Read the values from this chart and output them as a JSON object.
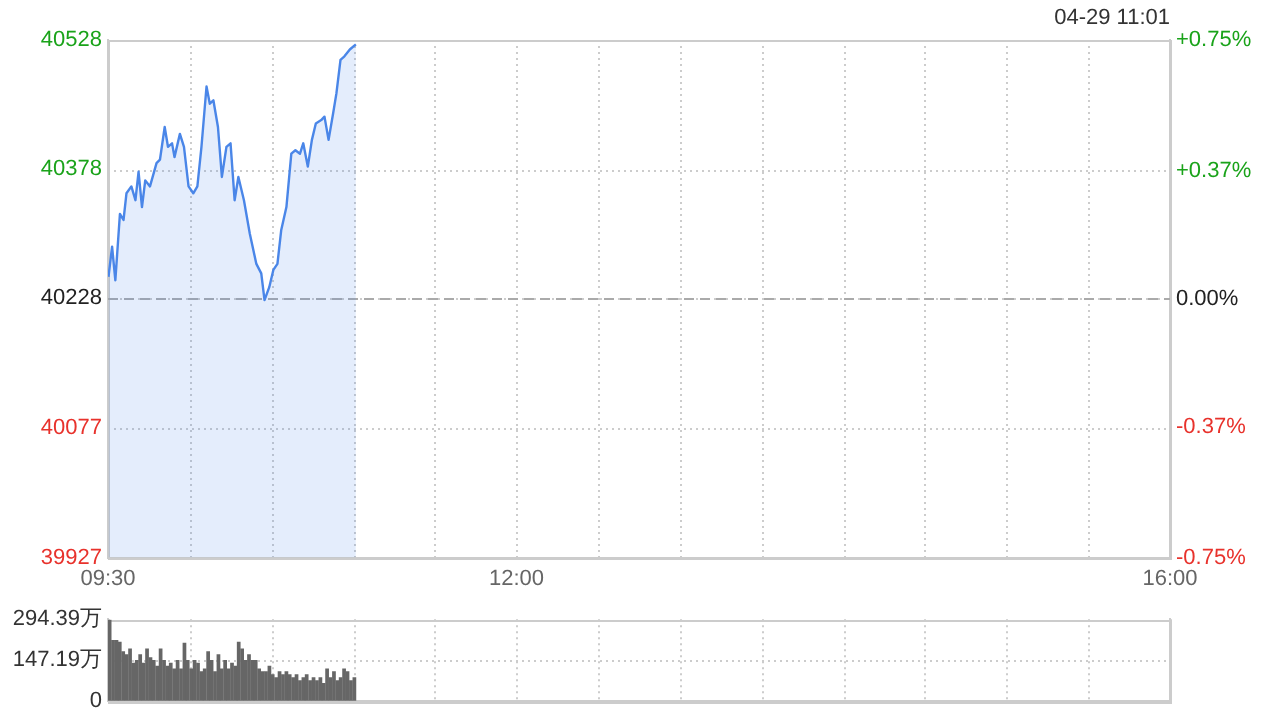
{
  "chart_data": [
    {
      "type": "area",
      "annotations": [
        "04-29 11:01"
      ],
      "series": [
        {
          "color": "#4a86e8",
          "x": [
            9.503,
            9.525,
            9.545,
            9.573,
            9.595,
            9.613,
            9.643,
            9.668,
            9.687,
            9.708,
            9.728,
            9.757,
            9.797,
            9.818,
            9.847,
            9.867,
            9.892,
            9.907,
            9.94,
            9.965,
            9.993,
            10.022,
            10.047,
            10.072,
            10.103,
            10.123,
            10.145,
            10.173,
            10.197,
            10.225,
            10.25,
            10.275,
            10.298,
            10.332,
            10.368,
            10.408,
            10.438,
            10.458,
            10.487,
            10.512,
            10.537,
            10.56,
            10.592,
            10.622,
            10.647,
            10.675,
            10.695,
            10.723,
            10.748,
            10.772,
            10.805,
            10.825,
            10.85,
            10.878,
            10.898,
            10.923,
            10.947,
            10.98,
            11.017
          ],
          "values": [
            40253,
            40288,
            40249,
            40326,
            40319,
            40350,
            40358,
            40342,
            40375,
            40334,
            40365,
            40358,
            40385,
            40389,
            40427,
            40404,
            40408,
            40392,
            40419,
            40404,
            40358,
            40350,
            40358,
            40404,
            40474,
            40454,
            40458,
            40427,
            40369,
            40404,
            40408,
            40342,
            40369,
            40342,
            40303,
            40268,
            40257,
            40226,
            40241,
            40261,
            40268,
            40307,
            40334,
            40396,
            40400,
            40396,
            40408,
            40381,
            40412,
            40431,
            40435,
            40439,
            40412,
            40443,
            40466,
            40505,
            40509,
            40517,
            40523
          ]
        }
      ],
      "xlim": [
        9.5,
        16
      ],
      "xticks": [
        {
          "value": 9.5,
          "label": "09:30"
        },
        {
          "value": 10,
          "label": null
        },
        {
          "value": 10.5,
          "label": null
        },
        {
          "value": 11,
          "label": null
        },
        {
          "value": 11.5,
          "label": null
        },
        {
          "value": 12,
          "label": "12:00"
        },
        {
          "value": 12.5,
          "label": null
        },
        {
          "value": 13,
          "label": null
        },
        {
          "value": 13.5,
          "label": null
        },
        {
          "value": 14,
          "label": null
        },
        {
          "value": 14.5,
          "label": null
        },
        {
          "value": 15,
          "label": null
        },
        {
          "value": 15.5,
          "label": null
        },
        {
          "value": 16,
          "label": "16:00"
        }
      ],
      "ylim": [
        39927,
        40528
      ],
      "yticks": [
        39927,
        40077,
        40228,
        40378,
        40528
      ],
      "y2lim": [
        -0.75,
        0.75
      ],
      "y2ticks": [
        {
          "value": -0.75,
          "label": "-0.75%"
        },
        {
          "value": -0.37,
          "label": "-0.37%"
        },
        {
          "value": 0,
          "label": "0.00%"
        },
        {
          "value": 0.37,
          "label": "+0.37%"
        },
        {
          "value": 0.75,
          "label": "+0.75%"
        }
      ],
      "ref_lines": [
        {
          "axis": "y",
          "value": 40228,
          "color": "#aaaaaa",
          "line_style": "dashed"
        }
      ],
      "grid": true,
      "legend": false,
      "marker": "none"
    },
    {
      "type": "bar",
      "tick_labels": "y",
      "series": [
        {
          "color": "#666666",
          "x": [
            9.51,
            9.531,
            9.552,
            9.572,
            9.593,
            9.614,
            9.635,
            9.656,
            9.676,
            9.697,
            9.718,
            9.739,
            9.76,
            9.78,
            9.801,
            9.822,
            9.843,
            9.864,
            9.884,
            9.905,
            9.926,
            9.947,
            9.968,
            9.988,
            10.009,
            10.03,
            10.051,
            10.072,
            10.092,
            10.113,
            10.134,
            10.155,
            10.176,
            10.196,
            10.217,
            10.238,
            10.259,
            10.28,
            10.3,
            10.321,
            10.342,
            10.363,
            10.384,
            10.404,
            10.425,
            10.446,
            10.467,
            10.488,
            10.508,
            10.529,
            10.55,
            10.571,
            10.592,
            10.612,
            10.633,
            10.654,
            10.675,
            10.696,
            10.716,
            10.737,
            10.758,
            10.779,
            10.8,
            10.82,
            10.841,
            10.862,
            10.883,
            10.904,
            10.924,
            10.945,
            10.966,
            10.987,
            11.008
          ],
          "values": [
            290,
            217,
            217,
            211,
            176,
            166,
            186,
            135,
            145,
            166,
            135,
            186,
            155,
            145,
            124,
            186,
            145,
            124,
            135,
            114,
            145,
            114,
            207,
            145,
            114,
            145,
            135,
            104,
            114,
            176,
            145,
            104,
            166,
            114,
            145,
            114,
            135,
            124,
            211,
            186,
            145,
            166,
            145,
            145,
            114,
            104,
            104,
            124,
            93,
            83,
            104,
            93,
            104,
            93,
            83,
            93,
            72,
            83,
            93,
            72,
            83,
            72,
            83,
            62,
            114,
            83,
            104,
            72,
            83,
            114,
            104,
            72,
            83
          ]
        }
      ],
      "xlim": [
        9.5,
        16
      ],
      "xticks": [
        {
          "value": 9.5,
          "label": null
        },
        {
          "value": 10,
          "label": null
        },
        {
          "value": 10.5,
          "label": null
        },
        {
          "value": 11,
          "label": null
        },
        {
          "value": 11.5,
          "label": null
        },
        {
          "value": 12,
          "label": null
        },
        {
          "value": 12.5,
          "label": null
        },
        {
          "value": 13,
          "label": null
        },
        {
          "value": 13.5,
          "label": null
        },
        {
          "value": 14,
          "label": null
        },
        {
          "value": 14.5,
          "label": null
        },
        {
          "value": 15,
          "label": null
        },
        {
          "value": 15.5,
          "label": null
        },
        {
          "value": 16,
          "label": null
        }
      ],
      "ylim": [
        0,
        294.39
      ],
      "yticks": [
        0,
        {
          "value": 147.19,
          "label": "147.19万"
        },
        {
          "value": 294.39,
          "label": "294.39万"
        }
      ],
      "grid": true,
      "legend": false
    }
  ]
}
